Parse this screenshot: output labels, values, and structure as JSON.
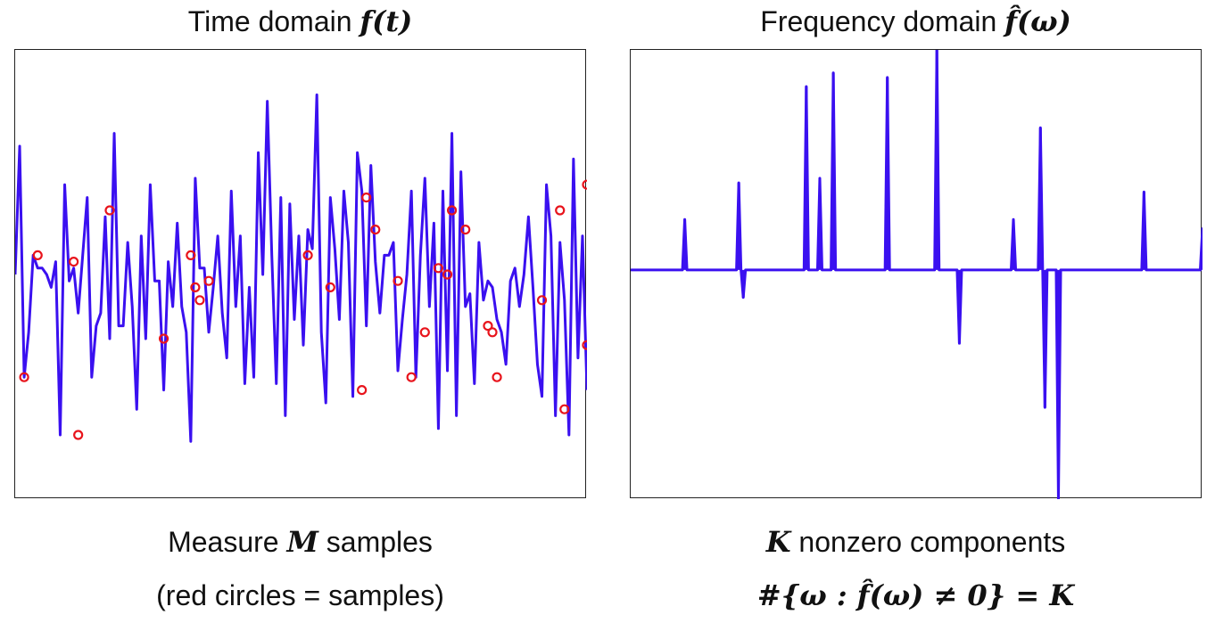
{
  "left": {
    "title_text": "Time domain ",
    "title_math": "f(t)",
    "caption1_pre": "Measure ",
    "caption1_math": "M",
    "caption1_post": " samples",
    "caption2": "(red circles = samples)"
  },
  "right": {
    "title_text": "Frequency domain ",
    "title_math": "f̂(ω)",
    "caption1_math": "K",
    "caption1_post": " nonzero components",
    "caption2_math": "#{ω : f̂(ω) ≠ 0} = K"
  },
  "colors": {
    "line": "#3a10f0",
    "samples": "#e8141c",
    "frame": "#222222"
  },
  "chart_data": [
    {
      "type": "line",
      "xlim": [
        0,
        127
      ],
      "ylim": [
        -3.2,
        3.8
      ],
      "grid": false,
      "series": [
        {
          "values": [
            0.3,
            2.3,
            -1.3,
            -0.6,
            0.6,
            0.4,
            0.4,
            0.3,
            0.1,
            0.5,
            -2.2,
            1.7,
            0.2,
            0.4,
            -0.3,
            0.6,
            1.5,
            -1.3,
            -0.5,
            -0.3,
            1.2,
            -0.7,
            2.5,
            -0.5,
            -0.5,
            0.8,
            -0.2,
            -1.8,
            0.9,
            -0.7,
            1.7,
            0.2,
            0.2,
            -1.5,
            0.5,
            -0.2,
            1.1,
            -0.2,
            -0.6,
            -2.3,
            1.8,
            0.4,
            0.4,
            -0.6,
            0.1,
            0.9,
            -0.3,
            -1.0,
            1.6,
            -0.2,
            0.9,
            -1.4,
            0.1,
            -1.3,
            2.2,
            0.3,
            3.0,
            0.6,
            -1.4,
            1.5,
            -1.9,
            1.4,
            -0.4,
            0.9,
            -0.8,
            1.0,
            0.7,
            3.1,
            -0.6,
            -1.7,
            1.5,
            0.7,
            -0.4,
            1.6,
            0.8,
            -1.6,
            2.2,
            1.6,
            -0.5,
            2.0,
            0.5,
            -0.3,
            0.6,
            0.6,
            0.8,
            -1.2,
            -0.4,
            0.3,
            1.6,
            -1.3,
            0.6,
            1.8,
            -0.2,
            1.1,
            -2.1,
            1.6,
            -1.2,
            2.5,
            -1.9,
            1.9,
            -0.2,
            0.0,
            -1.4,
            0.8,
            -0.1,
            0.2,
            0.1,
            -0.4,
            -0.6,
            -1.1,
            0.2,
            0.4,
            -0.2,
            0.3,
            1.2,
            0.1,
            -1.1,
            -1.6,
            1.7,
            0.9,
            -1.9,
            0.8,
            -0.1,
            -2.2,
            2.1,
            -1.0,
            0.9,
            -1.5
          ]
        }
      ],
      "samples": [
        {
          "x": 2,
          "y": -1.3
        },
        {
          "x": 5,
          "y": 0.6
        },
        {
          "x": 13,
          "y": 0.5
        },
        {
          "x": 14,
          "y": -2.2
        },
        {
          "x": 21,
          "y": 1.3
        },
        {
          "x": 33,
          "y": -0.7
        },
        {
          "x": 39,
          "y": 0.6
        },
        {
          "x": 40,
          "y": 0.1
        },
        {
          "x": 41,
          "y": -0.1
        },
        {
          "x": 43,
          "y": 0.2
        },
        {
          "x": 65,
          "y": 0.6
        },
        {
          "x": 70,
          "y": 0.1
        },
        {
          "x": 77,
          "y": -1.5
        },
        {
          "x": 78,
          "y": 1.5
        },
        {
          "x": 80,
          "y": 1.0
        },
        {
          "x": 85,
          "y": 0.2
        },
        {
          "x": 88,
          "y": -1.3
        },
        {
          "x": 91,
          "y": -0.6
        },
        {
          "x": 94,
          "y": 0.4
        },
        {
          "x": 96,
          "y": 0.3
        },
        {
          "x": 97,
          "y": 1.3
        },
        {
          "x": 100,
          "y": 1.0
        },
        {
          "x": 105,
          "y": -0.5
        },
        {
          "x": 106,
          "y": -0.6
        },
        {
          "x": 107,
          "y": -1.3
        },
        {
          "x": 117,
          "y": -0.1
        },
        {
          "x": 121,
          "y": 1.3
        },
        {
          "x": 122,
          "y": -1.8
        },
        {
          "x": 127,
          "y": 1.7
        },
        {
          "x": 128,
          "y": -0.8
        }
      ]
    },
    {
      "type": "line",
      "xlim": [
        0,
        127
      ],
      "ylim": [
        -2.5,
        2.4
      ],
      "grid": false,
      "baseline": 0,
      "spikes": [
        {
          "x": 12,
          "y": 0.55
        },
        {
          "x": 24,
          "y": 0.95
        },
        {
          "x": 25,
          "y": -0.3
        },
        {
          "x": 39,
          "y": 2.0
        },
        {
          "x": 42,
          "y": 1.0
        },
        {
          "x": 45,
          "y": 2.15
        },
        {
          "x": 57,
          "y": 2.1
        },
        {
          "x": 68,
          "y": 2.4
        },
        {
          "x": 73,
          "y": -0.8
        },
        {
          "x": 85,
          "y": 0.55
        },
        {
          "x": 91,
          "y": 1.55
        },
        {
          "x": 92,
          "y": -1.5
        },
        {
          "x": 95,
          "y": -2.5
        },
        {
          "x": 114,
          "y": 0.85
        },
        {
          "x": 127,
          "y": 0.45
        }
      ]
    }
  ]
}
